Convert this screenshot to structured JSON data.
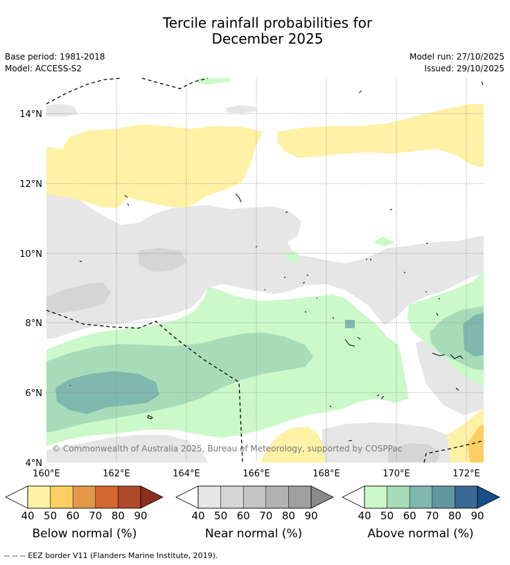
{
  "title_line1": "Tercile rainfall probabilities for",
  "title_line2": "December 2025",
  "meta": {
    "base_period": "Base period: 1981-2018",
    "model": "Model: ACCESS-S2",
    "model_run": "Model run: 27/10/2025",
    "issued": "Issued: 29/10/2025"
  },
  "map": {
    "lon_labels": [
      "160°E",
      "162°E",
      "164°E",
      "166°E",
      "168°E",
      "170°E",
      "172°E"
    ],
    "lat_labels": [
      "14°N",
      "12°N",
      "10°N",
      "8°N",
      "6°N",
      "4°N"
    ],
    "copyright": "© Commonwealth of Australia 2025, Bureau of Meteorology, supported by COSPPac",
    "lon_range": [
      160,
      172.5
    ],
    "lat_range": [
      4,
      15
    ]
  },
  "colorbars": [
    {
      "name": "below",
      "title": "Below normal (%)",
      "ticks": [
        "40",
        "50",
        "60",
        "70",
        "80",
        "90"
      ],
      "colors": [
        "#fff1a6",
        "#fdcf62",
        "#e3984a",
        "#d2672f",
        "#b0492a",
        "#8c2e1f"
      ]
    },
    {
      "name": "near",
      "title": "Near normal (%)",
      "ticks": [
        "40",
        "50",
        "60",
        "70",
        "80",
        "90"
      ],
      "colors": [
        "#e6e6e6",
        "#d5d5d5",
        "#c4c4c4",
        "#b2b2b2",
        "#a0a0a0",
        "#8a8a8a"
      ]
    },
    {
      "name": "above",
      "title": "Above normal (%)",
      "ticks": [
        "40",
        "50",
        "60",
        "70",
        "80",
        "90"
      ],
      "colors": [
        "#cbf9c9",
        "#a8dcb9",
        "#80b7ae",
        "#5f98a1",
        "#3b6996",
        "#1a4e86"
      ]
    }
  ],
  "footer": "--  --  -- EEZ border V11 (Flanders Marine Institute, 2019)."
}
